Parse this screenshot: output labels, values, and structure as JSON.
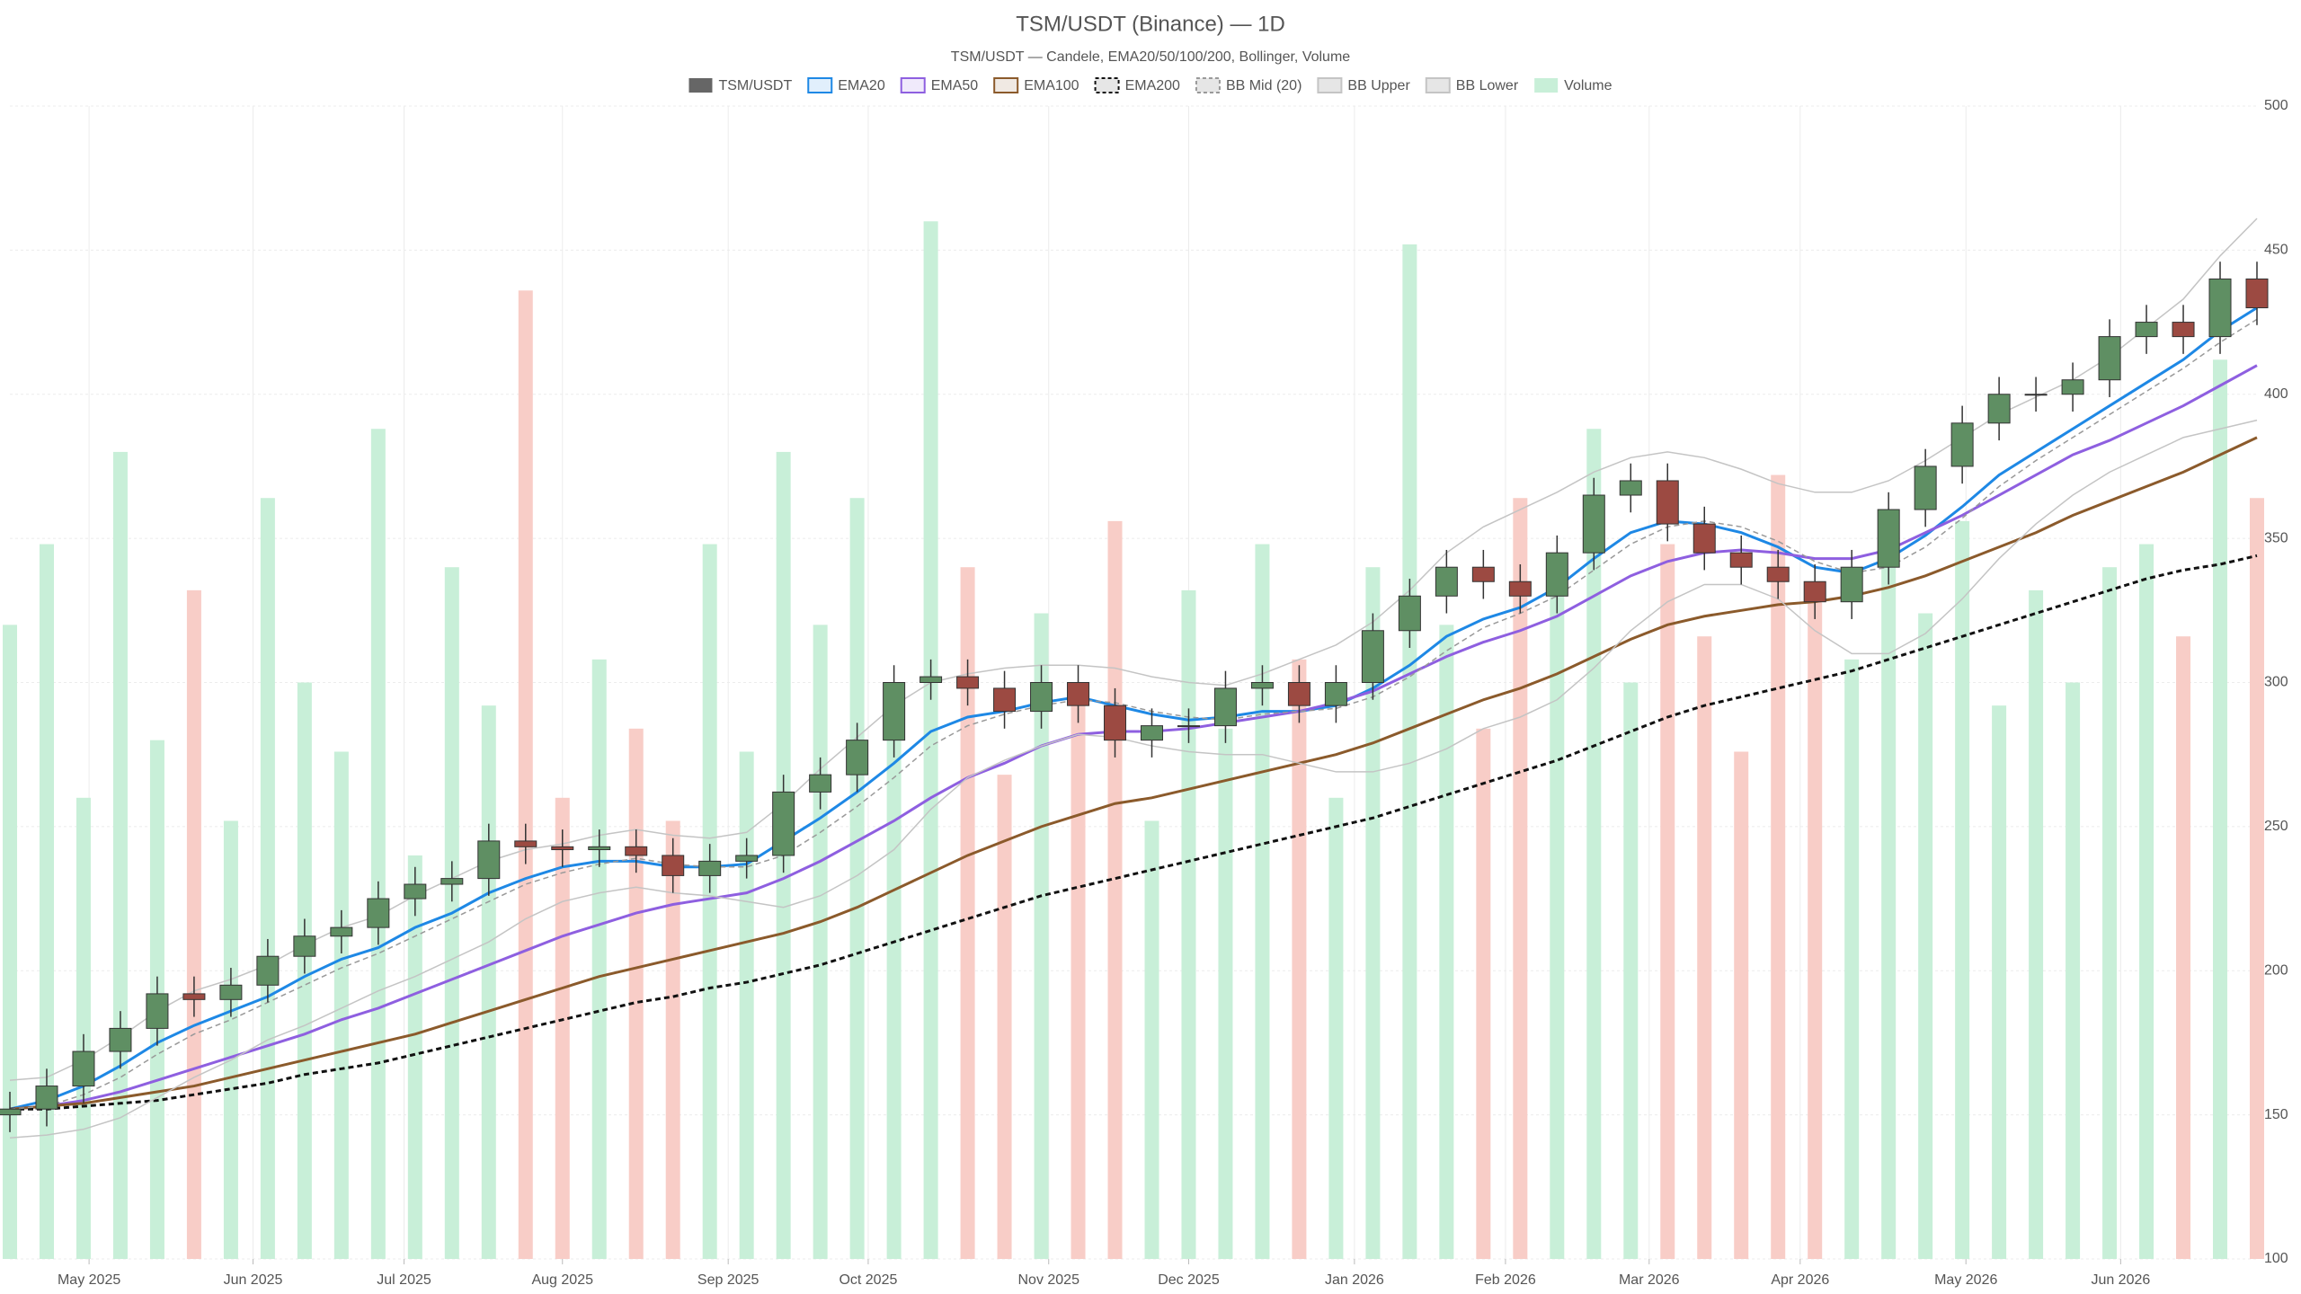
{
  "chart_data": {
    "type": "candlestick",
    "title": "TSM/USDT (Binance) — 1D",
    "subtitle": "TSM/USDT — Candele, EMA20/50/100/200, Bollinger, Volume",
    "categories": [
      null,
      null,
      null,
      null,
      null,
      null,
      null,
      null,
      null,
      null,
      null,
      null,
      null,
      null,
      null,
      null,
      null,
      null,
      null,
      null,
      null,
      null,
      null,
      null,
      null,
      null,
      null,
      null,
      null,
      null,
      null,
      null,
      null,
      null,
      null,
      null,
      null,
      null,
      null,
      null,
      null,
      null,
      null,
      null,
      null,
      null,
      null,
      null,
      null,
      null,
      null,
      null,
      null,
      null,
      null,
      null,
      null,
      null,
      null,
      null,
      null,
      null
    ],
    "xticks": [
      {
        "value": 2.15,
        "label": "May 2025"
      },
      {
        "value": 6.6,
        "label": "Jun 2025"
      },
      {
        "value": 10.7,
        "label": "Jul 2025"
      },
      {
        "value": 15.0,
        "label": "Aug 2025"
      },
      {
        "value": 19.5,
        "label": "Sep 2025"
      },
      {
        "value": 23.3,
        "label": "Oct 2025"
      },
      {
        "value": 28.2,
        "label": "Nov 2025"
      },
      {
        "value": 32.0,
        "label": "Dec 2025"
      },
      {
        "value": 36.5,
        "label": "Jan 2026"
      },
      {
        "value": 40.6,
        "label": "Feb 2026"
      },
      {
        "value": 44.5,
        "label": "Mar 2026"
      },
      {
        "value": 48.6,
        "label": "Apr 2026"
      },
      {
        "value": 53.1,
        "label": "May 2026"
      },
      {
        "value": 57.3,
        "label": "Jun 2026"
      }
    ],
    "ylim": [
      100,
      500
    ],
    "yticks": [
      100,
      150,
      200,
      250,
      300,
      350,
      400,
      450,
      500
    ],
    "y2lim": [
      0,
      100
    ],
    "grid": true,
    "series": [
      {
        "name": "TSM/USDT",
        "color": "#666666",
        "up_color": "#5f8f63",
        "down_color": "#9c4a42",
        "open": [
          150,
          152,
          160,
          172,
          180,
          192,
          190,
          195,
          205,
          212,
          215,
          225,
          230,
          232,
          245,
          243,
          242,
          243,
          240,
          233,
          238,
          240,
          262,
          268,
          280,
          300,
          302,
          298,
          290,
          300,
          292,
          280,
          285,
          285,
          298,
          300,
          292,
          300,
          318,
          330,
          340,
          335,
          330,
          345,
          365,
          370,
          355,
          345,
          340,
          335,
          328,
          340,
          360,
          375,
          390,
          400,
          400,
          405,
          420,
          425,
          420,
          440
        ],
        "high": [
          158,
          166,
          178,
          186,
          198,
          198,
          201,
          211,
          218,
          221,
          231,
          236,
          238,
          251,
          251,
          249,
          249,
          249,
          246,
          244,
          246,
          268,
          274,
          286,
          306,
          308,
          308,
          304,
          306,
          306,
          298,
          291,
          291,
          304,
          306,
          306,
          306,
          324,
          336,
          346,
          346,
          341,
          351,
          371,
          376,
          376,
          361,
          351,
          346,
          341,
          346,
          366,
          381,
          396,
          406,
          406,
          411,
          426,
          431,
          431,
          446,
          446
        ],
        "low": [
          144,
          146,
          154,
          166,
          174,
          184,
          184,
          189,
          199,
          206,
          209,
          219,
          224,
          226,
          237,
          236,
          236,
          234,
          227,
          227,
          232,
          234,
          256,
          262,
          274,
          294,
          292,
          284,
          284,
          286,
          274,
          274,
          279,
          279,
          292,
          286,
          286,
          294,
          312,
          324,
          329,
          324,
          324,
          339,
          359,
          349,
          339,
          334,
          329,
          322,
          322,
          334,
          354,
          369,
          384,
          394,
          394,
          399,
          414,
          414,
          414,
          424
        ],
        "close": [
          152,
          160,
          172,
          180,
          192,
          190,
          195,
          205,
          212,
          215,
          225,
          230,
          232,
          245,
          243,
          242,
          243,
          240,
          233,
          238,
          240,
          262,
          268,
          280,
          300,
          302,
          298,
          290,
          300,
          292,
          280,
          285,
          285,
          298,
          300,
          292,
          300,
          318,
          330,
          340,
          335,
          330,
          345,
          365,
          370,
          355,
          345,
          340,
          335,
          328,
          340,
          360,
          375,
          390,
          400,
          400,
          405,
          420,
          425,
          420,
          440,
          430
        ]
      },
      {
        "name": "EMA20",
        "color": "#1e88e5",
        "values": [
          152,
          155,
          160,
          167,
          175,
          181,
          186,
          191,
          198,
          204,
          208,
          215,
          220,
          227,
          232,
          236,
          238,
          238,
          236,
          236,
          237,
          245,
          253,
          262,
          272,
          283,
          288,
          290,
          293,
          295,
          292,
          289,
          287,
          288,
          290,
          290,
          292,
          298,
          306,
          316,
          322,
          326,
          333,
          343,
          352,
          356,
          355,
          352,
          347,
          340,
          338,
          343,
          351,
          361,
          372,
          380,
          388,
          396,
          404,
          412,
          422,
          430
        ]
      },
      {
        "name": "EMA50",
        "color": "#8e5fe0",
        "values": [
          152,
          153,
          155,
          158,
          162,
          166,
          170,
          174,
          178,
          183,
          187,
          192,
          197,
          202,
          207,
          212,
          216,
          220,
          223,
          225,
          227,
          232,
          238,
          245,
          252,
          260,
          267,
          272,
          278,
          282,
          283,
          283,
          284,
          286,
          288,
          290,
          293,
          297,
          303,
          309,
          314,
          318,
          323,
          330,
          337,
          342,
          345,
          346,
          345,
          343,
          343,
          346,
          352,
          358,
          365,
          372,
          379,
          384,
          390,
          396,
          403,
          410
        ]
      },
      {
        "name": "EMA100",
        "color": "#8b5a2b",
        "values": [
          152,
          153,
          154,
          156,
          158,
          160,
          163,
          166,
          169,
          172,
          175,
          178,
          182,
          186,
          190,
          194,
          198,
          201,
          204,
          207,
          210,
          213,
          217,
          222,
          228,
          234,
          240,
          245,
          250,
          254,
          258,
          260,
          263,
          266,
          269,
          272,
          275,
          279,
          284,
          289,
          294,
          298,
          303,
          309,
          315,
          320,
          323,
          325,
          327,
          328,
          330,
          333,
          337,
          342,
          347,
          352,
          358,
          363,
          368,
          373,
          379,
          385
        ]
      },
      {
        "name": "EMA200",
        "color": "#111111",
        "dashed": true,
        "values": [
          152,
          152,
          153,
          154,
          155,
          157,
          159,
          161,
          164,
          166,
          168,
          171,
          174,
          177,
          180,
          183,
          186,
          189,
          191,
          194,
          196,
          199,
          202,
          206,
          210,
          214,
          218,
          222,
          226,
          229,
          232,
          235,
          238,
          241,
          244,
          247,
          250,
          253,
          257,
          261,
          265,
          269,
          273,
          278,
          283,
          288,
          292,
          295,
          298,
          301,
          304,
          308,
          312,
          316,
          320,
          324,
          328,
          332,
          336,
          339,
          341,
          344
        ]
      },
      {
        "name": "BB Mid (20)",
        "color": "#999999",
        "dashed": true,
        "values": [
          152,
          153,
          157,
          163,
          171,
          178,
          183,
          189,
          195,
          201,
          206,
          212,
          218,
          224,
          230,
          234,
          237,
          239,
          237,
          236,
          236,
          240,
          248,
          257,
          267,
          278,
          285,
          289,
          292,
          294,
          293,
          290,
          288,
          287,
          289,
          290,
          291,
          295,
          302,
          311,
          319,
          324,
          330,
          339,
          348,
          354,
          356,
          354,
          349,
          342,
          338,
          340,
          347,
          357,
          368,
          377,
          385,
          393,
          401,
          409,
          418,
          426
        ]
      },
      {
        "name": "BB Upper",
        "color": "#c4c4c4",
        "values": [
          162,
          163,
          169,
          177,
          186,
          193,
          197,
          202,
          209,
          215,
          219,
          226,
          232,
          238,
          242,
          244,
          247,
          249,
          247,
          246,
          248,
          258,
          270,
          281,
          292,
          300,
          303,
          305,
          306,
          306,
          305,
          302,
          300,
          299,
          303,
          308,
          313,
          321,
          332,
          345,
          354,
          360,
          366,
          373,
          378,
          380,
          378,
          374,
          369,
          366,
          366,
          370,
          377,
          385,
          393,
          399,
          405,
          413,
          423,
          433,
          448,
          461
        ]
      },
      {
        "name": "BB Lower",
        "color": "#c4c4c4",
        "values": [
          142,
          143,
          145,
          149,
          156,
          163,
          169,
          176,
          181,
          187,
          193,
          198,
          204,
          210,
          218,
          224,
          227,
          229,
          227,
          226,
          224,
          222,
          226,
          233,
          242,
          256,
          267,
          273,
          278,
          282,
          281,
          278,
          276,
          275,
          275,
          272,
          269,
          269,
          272,
          277,
          284,
          288,
          294,
          305,
          318,
          328,
          334,
          334,
          329,
          318,
          310,
          310,
          317,
          329,
          343,
          355,
          365,
          373,
          379,
          385,
          388,
          391
        ]
      },
      {
        "name": "Volume",
        "color": "#c8efd8",
        "down_color": "#f8cdc7",
        "axis": "y2",
        "values": [
          55,
          62,
          40,
          70,
          45,
          58,
          38,
          66,
          50,
          44,
          72,
          35,
          60,
          48,
          84,
          40,
          52,
          46,
          38,
          62,
          44,
          70,
          55,
          66,
          48,
          90,
          60,
          42,
          56,
          50,
          64,
          38,
          58,
          46,
          62,
          52,
          40,
          60,
          88,
          55,
          46,
          66,
          58,
          72,
          50,
          62,
          54,
          44,
          68,
          58,
          52,
          60,
          56,
          64,
          48,
          58,
          50,
          60,
          62,
          54,
          78,
          66
        ]
      }
    ]
  }
}
